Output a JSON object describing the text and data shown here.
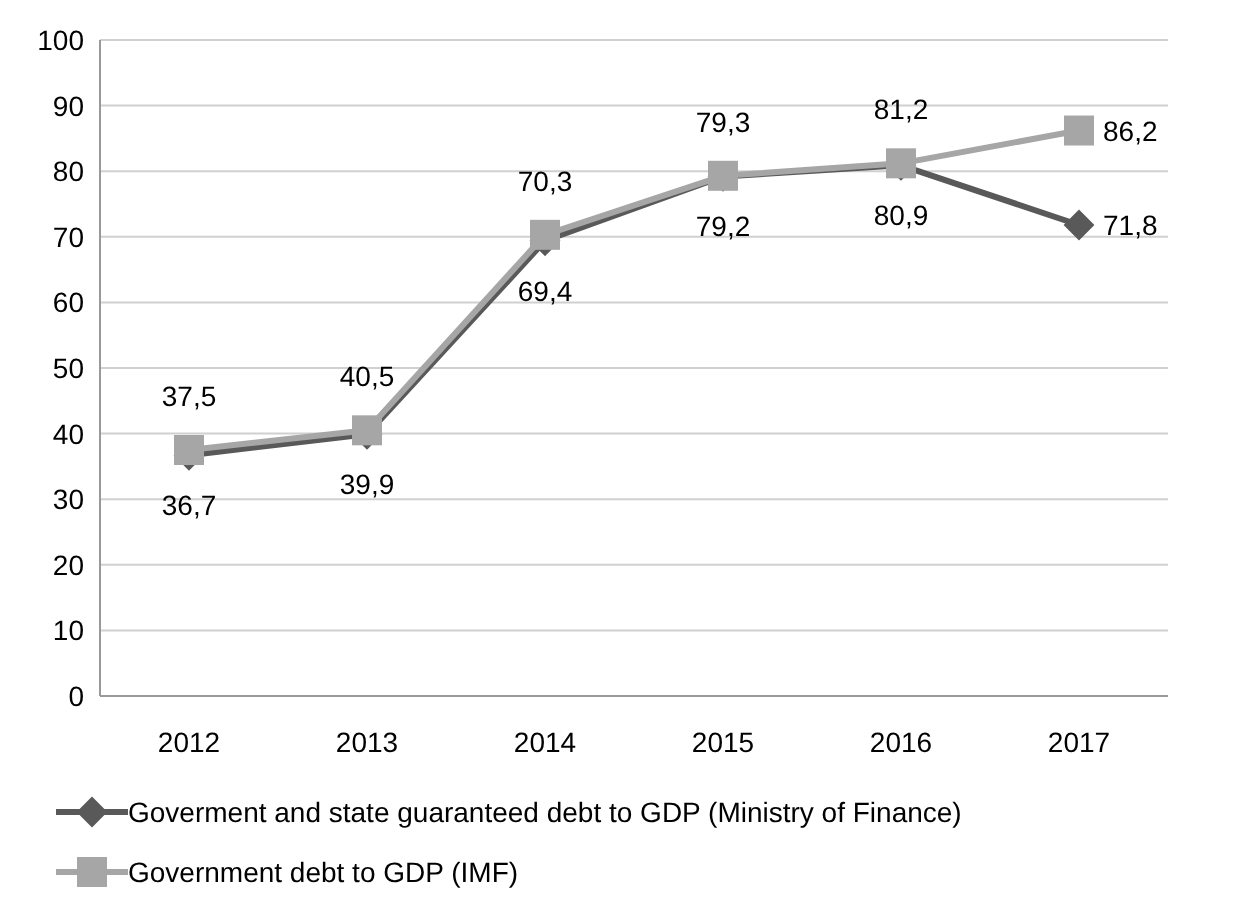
{
  "chart_data": {
    "type": "line",
    "categories": [
      "2012",
      "2013",
      "2014",
      "2015",
      "2016",
      "2017"
    ],
    "series": [
      {
        "name": "Goverment and state guaranteed debt to GDP (Ministry of Finance)",
        "color": "#595959",
        "marker": "diamond",
        "values": [
          36.7,
          39.9,
          69.4,
          79.2,
          80.9,
          71.8
        ],
        "value_labels": [
          "36,7",
          "39,9",
          "69,4",
          "79,2",
          "80,9",
          "71,8"
        ]
      },
      {
        "name": "Government debt to GDP (IMF)",
        "color": "#a6a6a6",
        "marker": "square",
        "values": [
          37.5,
          40.5,
          70.3,
          79.3,
          81.2,
          86.2
        ],
        "value_labels": [
          "37,5",
          "40,5",
          "70,3",
          "79,3",
          "81,2",
          "86,2"
        ]
      }
    ],
    "ylim": [
      0,
      100
    ],
    "yticks": [
      0,
      10,
      20,
      30,
      40,
      50,
      60,
      70,
      80,
      90,
      100
    ],
    "grid": "y",
    "legend": "bottom"
  }
}
